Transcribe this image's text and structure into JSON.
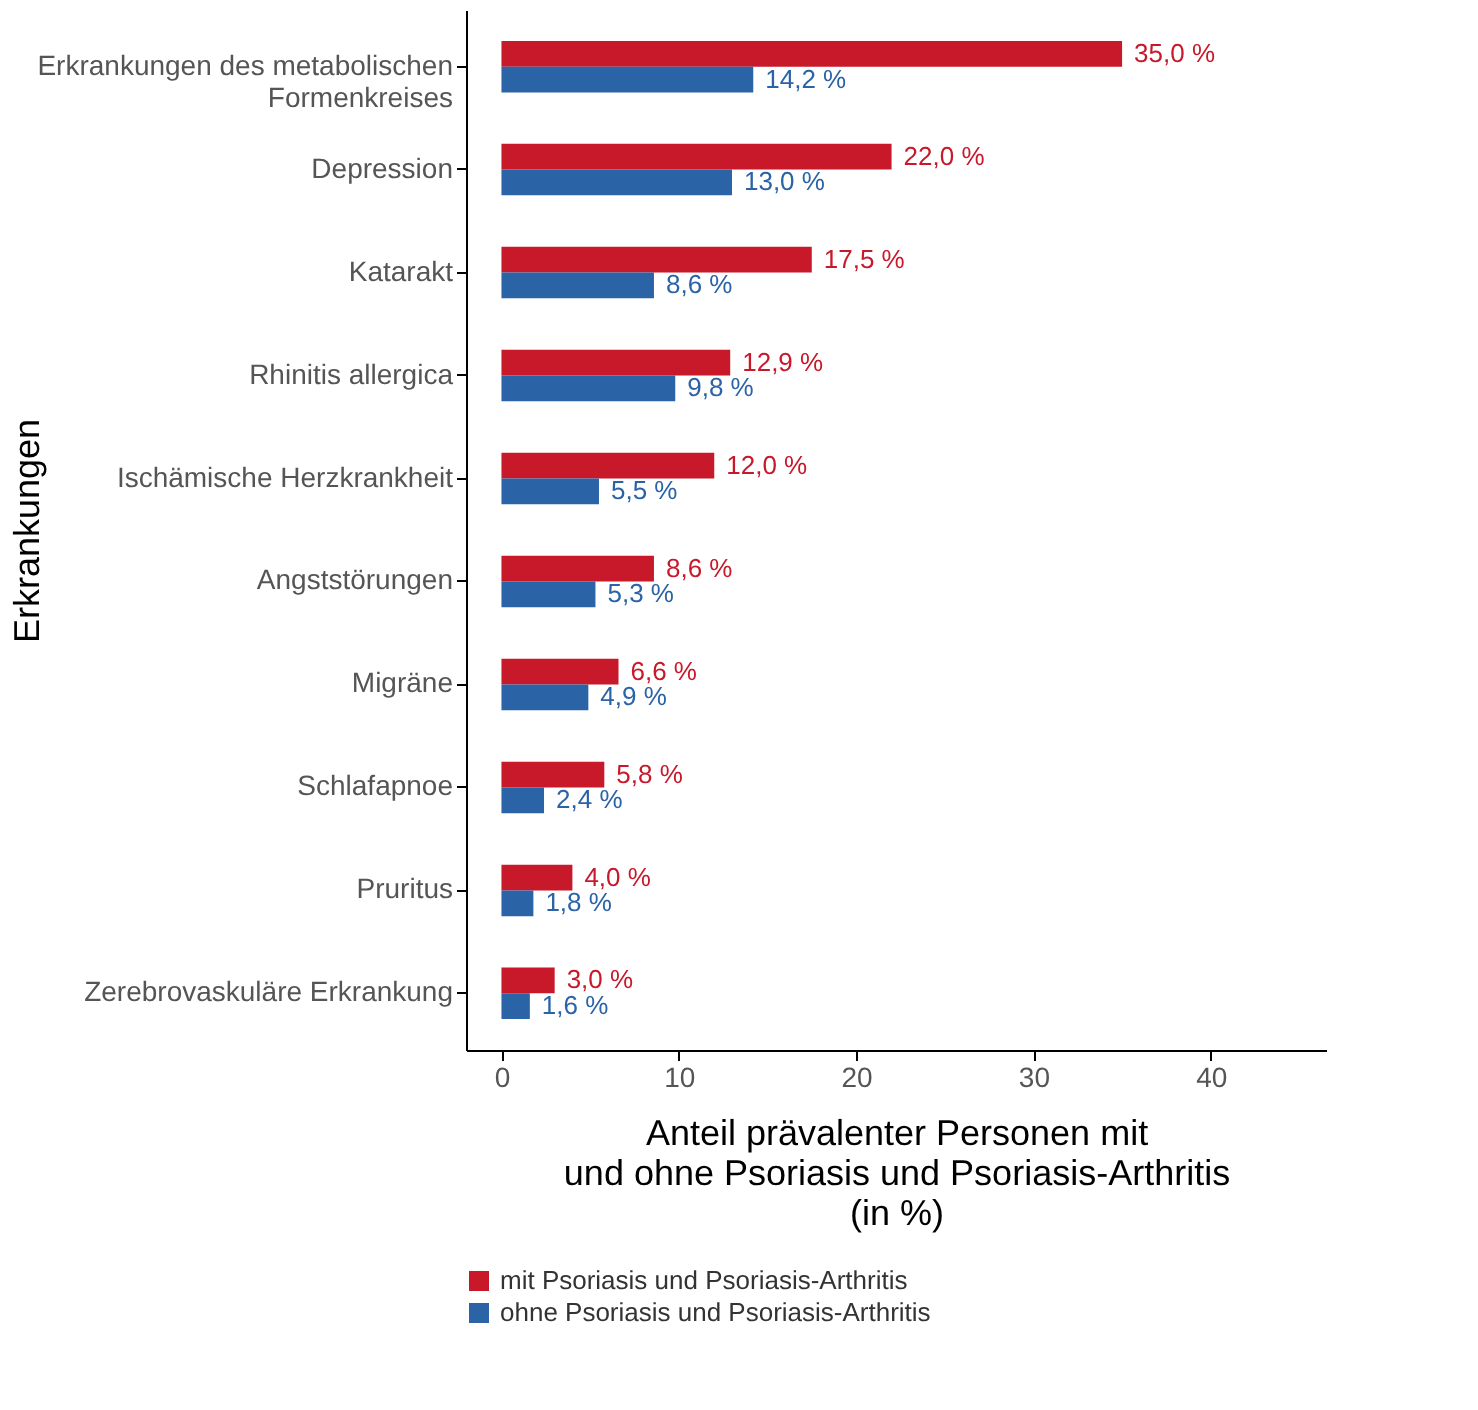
{
  "chart_data": {
    "type": "bar",
    "orientation": "horizontal",
    "categories": [
      "Erkrankungen des metabolischen\nFormenkreises",
      "Depression",
      "Katarakt",
      "Rhinitis allergica",
      "Ischämische Herzkrankheit",
      "Angststörungen",
      "Migräne",
      "Schlafapnoe",
      "Pruritus",
      "Zerebrovaskuläre Erkrankung"
    ],
    "series": [
      {
        "name": "mit Psoriasis und Psoriasis-Arthritis",
        "color": "#c8192b",
        "values": [
          35.0,
          22.0,
          17.5,
          12.9,
          12.0,
          8.6,
          6.6,
          5.8,
          4.0,
          3.0
        ],
        "value_labels": [
          "35,0 %",
          "22,0 %",
          "17,5 %",
          "12,9 %",
          "12,0 %",
          "8,6 %",
          "6,6 %",
          "5,8 %",
          "4,0 %",
          "3,0 %"
        ]
      },
      {
        "name": "ohne Psoriasis und Psoriasis-Arthritis",
        "color": "#2a63a6",
        "values": [
          14.2,
          13.0,
          8.6,
          9.8,
          5.5,
          5.3,
          4.9,
          2.4,
          1.8,
          1.6
        ],
        "value_labels": [
          "14,2 %",
          "13,0 %",
          "8,6 %",
          "9,8 %",
          "5,5 %",
          "5,3 %",
          "4,9 %",
          "2,4 %",
          "1,8 %",
          "1,6 %"
        ]
      }
    ],
    "xlabel": "Anteil prävalenter Personen mit\nund ohne Psoriasis und Psoriasis-Arthritis\n(in %)",
    "ylabel": "Erkrankungen",
    "xlim": [
      -2,
      46.5
    ],
    "xticks": [
      0,
      10,
      20,
      30,
      40
    ],
    "grid": false,
    "legend": "bottom"
  }
}
